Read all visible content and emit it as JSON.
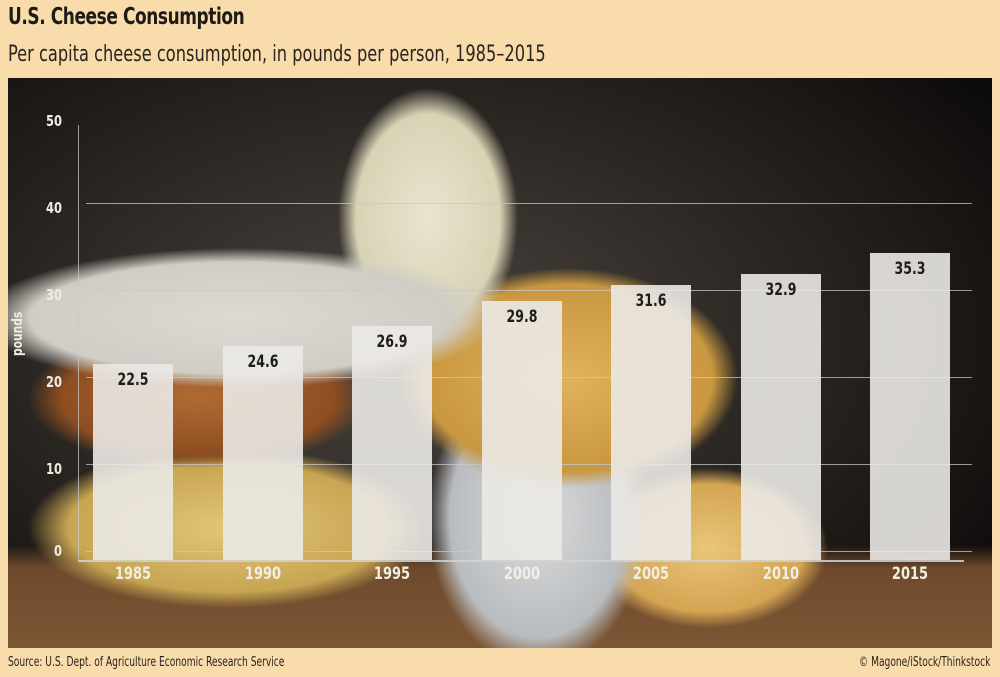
{
  "header": {
    "title": "U.S. Cheese Consumption",
    "subtitle": "Per capita cheese consumption, in pounds per person, 1985–2015"
  },
  "footer": {
    "source": "Source: U.S. Dept. of Agriculture Economic Research Service",
    "credit": "© Magone/iStock/Thinkstock"
  },
  "colors": {
    "background": "#f8dcac",
    "bar": "#ebe9e6",
    "value_text": "#1d1c1b",
    "axis_text": "#f1ece2"
  },
  "chart_data": {
    "type": "bar",
    "title": "U.S. Cheese Consumption",
    "subtitle": "Per capita cheese consumption, in pounds per person, 1985–2015",
    "xlabel": "",
    "ylabel": "pounds",
    "categories": [
      "1985",
      "1990",
      "1995",
      "2000",
      "2005",
      "2010",
      "2015"
    ],
    "values": [
      22.5,
      24.6,
      26.9,
      29.8,
      31.6,
      32.9,
      35.3
    ],
    "value_labels": [
      "22.5",
      "24.6",
      "26.9",
      "29.8",
      "31.6",
      "32.9",
      "35.3"
    ],
    "yticks": [
      "0",
      "10",
      "20",
      "30",
      "40",
      "50"
    ],
    "ylim": [
      0,
      50
    ],
    "grid": true,
    "legend": null,
    "source": "Source: U.S. Dept. of Agriculture Economic Research Service",
    "credit": "© Magone/iStock/Thinkstock"
  }
}
